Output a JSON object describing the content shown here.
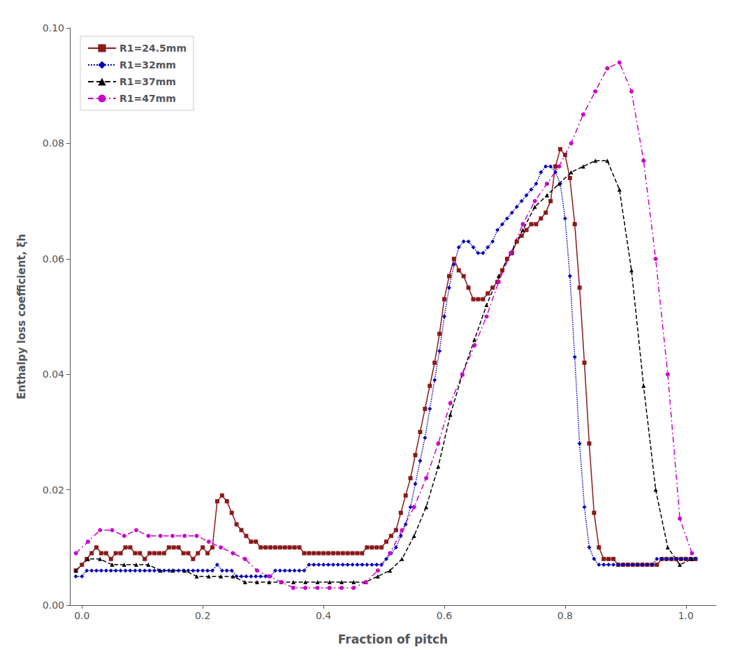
{
  "chart_data": {
    "type": "line",
    "xlabel": "Fraction of pitch",
    "ylabel": "Enthalpy loss coefficient, ξh",
    "xlim": [
      -0.02,
      1.05
    ],
    "ylim": [
      0,
      0.1
    ],
    "xticks": [
      {
        "value": 0,
        "label": "0.0"
      },
      0.2,
      0.4,
      0.6,
      0.8,
      {
        "value": 1.0,
        "label": "1.0"
      }
    ],
    "yticks": [
      {
        "value": 0,
        "label": "0.00"
      },
      0.02,
      0.04,
      0.06,
      0.08,
      {
        "value": 0.1,
        "label": "0.10"
      }
    ],
    "grid": false,
    "legend": "upper left",
    "series": [
      {
        "name": "R1=24.5mm",
        "color": "#8B1A1A",
        "marker": "square",
        "line_style": "solid",
        "x": [
          -0.01,
          0.0,
          0.008,
          0.016,
          0.024,
          0.032,
          0.04,
          0.048,
          0.056,
          0.064,
          0.072,
          0.08,
          0.088,
          0.096,
          0.104,
          0.112,
          0.12,
          0.128,
          0.136,
          0.144,
          0.152,
          0.16,
          0.168,
          0.176,
          0.184,
          0.192,
          0.2,
          0.208,
          0.216,
          0.224,
          0.232,
          0.24,
          0.248,
          0.256,
          0.264,
          0.272,
          0.28,
          0.288,
          0.296,
          0.304,
          0.312,
          0.32,
          0.328,
          0.336,
          0.344,
          0.352,
          0.36,
          0.368,
          0.376,
          0.384,
          0.392,
          0.4,
          0.408,
          0.416,
          0.424,
          0.432,
          0.44,
          0.448,
          0.456,
          0.464,
          0.472,
          0.48,
          0.488,
          0.496,
          0.504,
          0.512,
          0.52,
          0.528,
          0.536,
          0.544,
          0.552,
          0.56,
          0.568,
          0.576,
          0.584,
          0.592,
          0.6,
          0.608,
          0.616,
          0.624,
          0.632,
          0.64,
          0.648,
          0.656,
          0.664,
          0.672,
          0.68,
          0.688,
          0.696,
          0.704,
          0.712,
          0.72,
          0.728,
          0.736,
          0.744,
          0.752,
          0.76,
          0.768,
          0.776,
          0.784,
          0.792,
          0.8,
          0.808,
          0.816,
          0.824,
          0.832,
          0.84,
          0.848,
          0.856,
          0.864,
          0.872,
          0.88,
          0.888,
          0.896,
          0.904,
          0.912,
          0.92,
          0.928,
          0.936,
          0.944,
          0.952,
          0.96,
          0.968,
          0.976,
          0.984,
          0.992,
          1.0,
          1.008,
          1.016
        ],
        "values": [
          0.006,
          0.007,
          0.008,
          0.009,
          0.01,
          0.009,
          0.009,
          0.008,
          0.009,
          0.009,
          0.01,
          0.01,
          0.009,
          0.009,
          0.008,
          0.009,
          0.009,
          0.009,
          0.009,
          0.01,
          0.01,
          0.01,
          0.009,
          0.009,
          0.008,
          0.009,
          0.01,
          0.009,
          0.01,
          0.018,
          0.019,
          0.018,
          0.016,
          0.014,
          0.013,
          0.012,
          0.011,
          0.011,
          0.01,
          0.01,
          0.01,
          0.01,
          0.01,
          0.01,
          0.01,
          0.01,
          0.01,
          0.009,
          0.009,
          0.009,
          0.009,
          0.009,
          0.009,
          0.009,
          0.009,
          0.009,
          0.009,
          0.009,
          0.009,
          0.009,
          0.01,
          0.01,
          0.01,
          0.01,
          0.011,
          0.012,
          0.013,
          0.016,
          0.019,
          0.022,
          0.026,
          0.03,
          0.034,
          0.038,
          0.042,
          0.047,
          0.053,
          0.057,
          0.06,
          0.058,
          0.057,
          0.055,
          0.053,
          0.053,
          0.053,
          0.054,
          0.055,
          0.056,
          0.058,
          0.06,
          0.061,
          0.063,
          0.064,
          0.065,
          0.066,
          0.066,
          0.067,
          0.068,
          0.07,
          0.076,
          0.079,
          0.078,
          0.074,
          0.066,
          0.055,
          0.042,
          0.028,
          0.016,
          0.01,
          0.008,
          0.008,
          0.008,
          0.007,
          0.007,
          0.007,
          0.007,
          0.007,
          0.007,
          0.007,
          0.007,
          0.007,
          0.008,
          0.008,
          0.008,
          0.008,
          0.008,
          0.008,
          0.008,
          0.008
        ]
      },
      {
        "name": "R1=32mm",
        "color": "#0000BB",
        "marker": "diamond",
        "line_style": "dotted",
        "x": [
          -0.01,
          0.0,
          0.008,
          0.016,
          0.024,
          0.032,
          0.04,
          0.048,
          0.056,
          0.064,
          0.072,
          0.08,
          0.088,
          0.096,
          0.104,
          0.112,
          0.12,
          0.128,
          0.136,
          0.144,
          0.152,
          0.16,
          0.168,
          0.176,
          0.184,
          0.192,
          0.2,
          0.208,
          0.216,
          0.224,
          0.232,
          0.24,
          0.248,
          0.256,
          0.264,
          0.272,
          0.28,
          0.288,
          0.296,
          0.304,
          0.312,
          0.32,
          0.328,
          0.336,
          0.344,
          0.352,
          0.36,
          0.368,
          0.376,
          0.384,
          0.392,
          0.4,
          0.408,
          0.416,
          0.424,
          0.432,
          0.44,
          0.448,
          0.456,
          0.464,
          0.472,
          0.48,
          0.488,
          0.496,
          0.504,
          0.512,
          0.52,
          0.528,
          0.536,
          0.544,
          0.552,
          0.56,
          0.568,
          0.576,
          0.584,
          0.592,
          0.6,
          0.608,
          0.616,
          0.624,
          0.632,
          0.64,
          0.648,
          0.656,
          0.664,
          0.672,
          0.68,
          0.688,
          0.696,
          0.704,
          0.712,
          0.72,
          0.728,
          0.736,
          0.744,
          0.752,
          0.76,
          0.768,
          0.776,
          0.784,
          0.792,
          0.8,
          0.808,
          0.816,
          0.824,
          0.832,
          0.84,
          0.848,
          0.856,
          0.864,
          0.872,
          0.88,
          0.888,
          0.896,
          0.904,
          0.912,
          0.92,
          0.928,
          0.936,
          0.944,
          0.952,
          0.96,
          0.968,
          0.976,
          0.984,
          0.992,
          1.0,
          1.008,
          1.016
        ],
        "values": [
          0.005,
          0.005,
          0.006,
          0.006,
          0.006,
          0.006,
          0.006,
          0.006,
          0.006,
          0.006,
          0.006,
          0.006,
          0.006,
          0.006,
          0.006,
          0.006,
          0.006,
          0.006,
          0.006,
          0.006,
          0.006,
          0.006,
          0.006,
          0.006,
          0.006,
          0.006,
          0.006,
          0.006,
          0.006,
          0.007,
          0.006,
          0.006,
          0.006,
          0.005,
          0.005,
          0.005,
          0.005,
          0.005,
          0.005,
          0.005,
          0.005,
          0.006,
          0.006,
          0.006,
          0.006,
          0.006,
          0.006,
          0.006,
          0.007,
          0.007,
          0.007,
          0.007,
          0.007,
          0.007,
          0.007,
          0.007,
          0.007,
          0.007,
          0.007,
          0.007,
          0.007,
          0.007,
          0.007,
          0.007,
          0.008,
          0.009,
          0.01,
          0.012,
          0.014,
          0.017,
          0.021,
          0.025,
          0.029,
          0.034,
          0.039,
          0.044,
          0.05,
          0.055,
          0.059,
          0.062,
          0.063,
          0.063,
          0.062,
          0.061,
          0.061,
          0.062,
          0.063,
          0.065,
          0.066,
          0.067,
          0.068,
          0.069,
          0.07,
          0.071,
          0.072,
          0.073,
          0.075,
          0.076,
          0.076,
          0.075,
          0.073,
          0.067,
          0.057,
          0.043,
          0.028,
          0.017,
          0.01,
          0.008,
          0.007,
          0.007,
          0.007,
          0.007,
          0.007,
          0.007,
          0.007,
          0.007,
          0.007,
          0.007,
          0.007,
          0.007,
          0.008,
          0.008,
          0.008,
          0.008,
          0.008,
          0.008,
          0.008,
          0.008,
          0.008
        ]
      },
      {
        "name": "R1=37mm",
        "color": "#000000",
        "marker": "triangle",
        "line_style": "dashed",
        "x": [
          -0.01,
          0.01,
          0.03,
          0.05,
          0.07,
          0.09,
          0.11,
          0.13,
          0.15,
          0.17,
          0.19,
          0.21,
          0.23,
          0.25,
          0.27,
          0.29,
          0.31,
          0.33,
          0.35,
          0.37,
          0.39,
          0.41,
          0.43,
          0.45,
          0.47,
          0.49,
          0.51,
          0.53,
          0.55,
          0.57,
          0.59,
          0.61,
          0.63,
          0.65,
          0.67,
          0.69,
          0.71,
          0.73,
          0.75,
          0.77,
          0.79,
          0.81,
          0.83,
          0.85,
          0.87,
          0.89,
          0.91,
          0.93,
          0.95,
          0.97,
          0.99,
          1.01
        ],
        "values": [
          0.006,
          0.008,
          0.008,
          0.007,
          0.007,
          0.007,
          0.007,
          0.006,
          0.006,
          0.006,
          0.005,
          0.005,
          0.005,
          0.005,
          0.004,
          0.004,
          0.004,
          0.004,
          0.004,
          0.004,
          0.004,
          0.004,
          0.004,
          0.004,
          0.004,
          0.005,
          0.006,
          0.008,
          0.012,
          0.017,
          0.024,
          0.033,
          0.04,
          0.046,
          0.052,
          0.057,
          0.061,
          0.065,
          0.069,
          0.071,
          0.073,
          0.075,
          0.076,
          0.077,
          0.077,
          0.072,
          0.058,
          0.038,
          0.02,
          0.01,
          0.007,
          0.008
        ]
      },
      {
        "name": "R1=47mm",
        "color": "#CC00CC",
        "marker": "circle",
        "line_style": "dashdot",
        "x": [
          -0.01,
          0.01,
          0.03,
          0.05,
          0.07,
          0.09,
          0.11,
          0.13,
          0.15,
          0.17,
          0.19,
          0.21,
          0.23,
          0.25,
          0.27,
          0.29,
          0.31,
          0.33,
          0.35,
          0.37,
          0.39,
          0.41,
          0.43,
          0.45,
          0.47,
          0.49,
          0.51,
          0.53,
          0.55,
          0.57,
          0.59,
          0.61,
          0.63,
          0.65,
          0.67,
          0.69,
          0.71,
          0.73,
          0.75,
          0.77,
          0.79,
          0.81,
          0.83,
          0.85,
          0.87,
          0.89,
          0.91,
          0.93,
          0.95,
          0.97,
          0.99,
          1.01
        ],
        "values": [
          0.009,
          0.011,
          0.013,
          0.013,
          0.012,
          0.013,
          0.012,
          0.012,
          0.012,
          0.012,
          0.012,
          0.011,
          0.01,
          0.009,
          0.008,
          0.006,
          0.005,
          0.004,
          0.003,
          0.003,
          0.003,
          0.003,
          0.003,
          0.003,
          0.004,
          0.006,
          0.009,
          0.013,
          0.017,
          0.022,
          0.028,
          0.035,
          0.04,
          0.045,
          0.05,
          0.056,
          0.061,
          0.066,
          0.07,
          0.073,
          0.076,
          0.08,
          0.085,
          0.089,
          0.093,
          0.094,
          0.089,
          0.077,
          0.06,
          0.04,
          0.015,
          0.009
        ]
      }
    ]
  }
}
